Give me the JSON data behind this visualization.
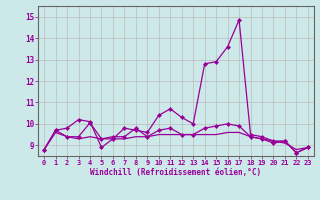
{
  "x": [
    0,
    1,
    2,
    3,
    4,
    5,
    6,
    7,
    8,
    9,
    10,
    11,
    12,
    13,
    14,
    15,
    16,
    17,
    18,
    19,
    20,
    21,
    22,
    23
  ],
  "line1": [
    8.8,
    9.7,
    9.8,
    10.2,
    10.1,
    8.9,
    9.3,
    9.8,
    9.7,
    9.6,
    10.4,
    10.7,
    10.3,
    10.0,
    12.8,
    12.9,
    13.6,
    14.85,
    9.5,
    9.4,
    9.2,
    9.2,
    8.65,
    8.9
  ],
  "line2": [
    8.8,
    9.7,
    9.4,
    9.4,
    10.05,
    9.3,
    9.4,
    9.4,
    9.8,
    9.4,
    9.7,
    9.8,
    9.5,
    9.5,
    9.8,
    9.9,
    10.0,
    9.9,
    9.4,
    9.3,
    9.1,
    9.2,
    8.65,
    8.9
  ],
  "line3": [
    8.8,
    9.6,
    9.4,
    9.3,
    9.4,
    9.3,
    9.3,
    9.3,
    9.4,
    9.4,
    9.5,
    9.5,
    9.5,
    9.5,
    9.5,
    9.5,
    9.6,
    9.6,
    9.4,
    9.3,
    9.2,
    9.1,
    8.8,
    8.9
  ],
  "line_color": "#990099",
  "bg_color": "#cce8e8",
  "grid_color": "#bbbbbb",
  "xlabel": "Windchill (Refroidissement éolien,°C)",
  "ylim": [
    8.5,
    15.5
  ],
  "xlim": [
    -0.5,
    23.5
  ],
  "yticks": [
    9,
    10,
    11,
    12,
    13,
    14,
    15
  ],
  "xticks": [
    0,
    1,
    2,
    3,
    4,
    5,
    6,
    7,
    8,
    9,
    10,
    11,
    12,
    13,
    14,
    15,
    16,
    17,
    18,
    19,
    20,
    21,
    22,
    23
  ]
}
